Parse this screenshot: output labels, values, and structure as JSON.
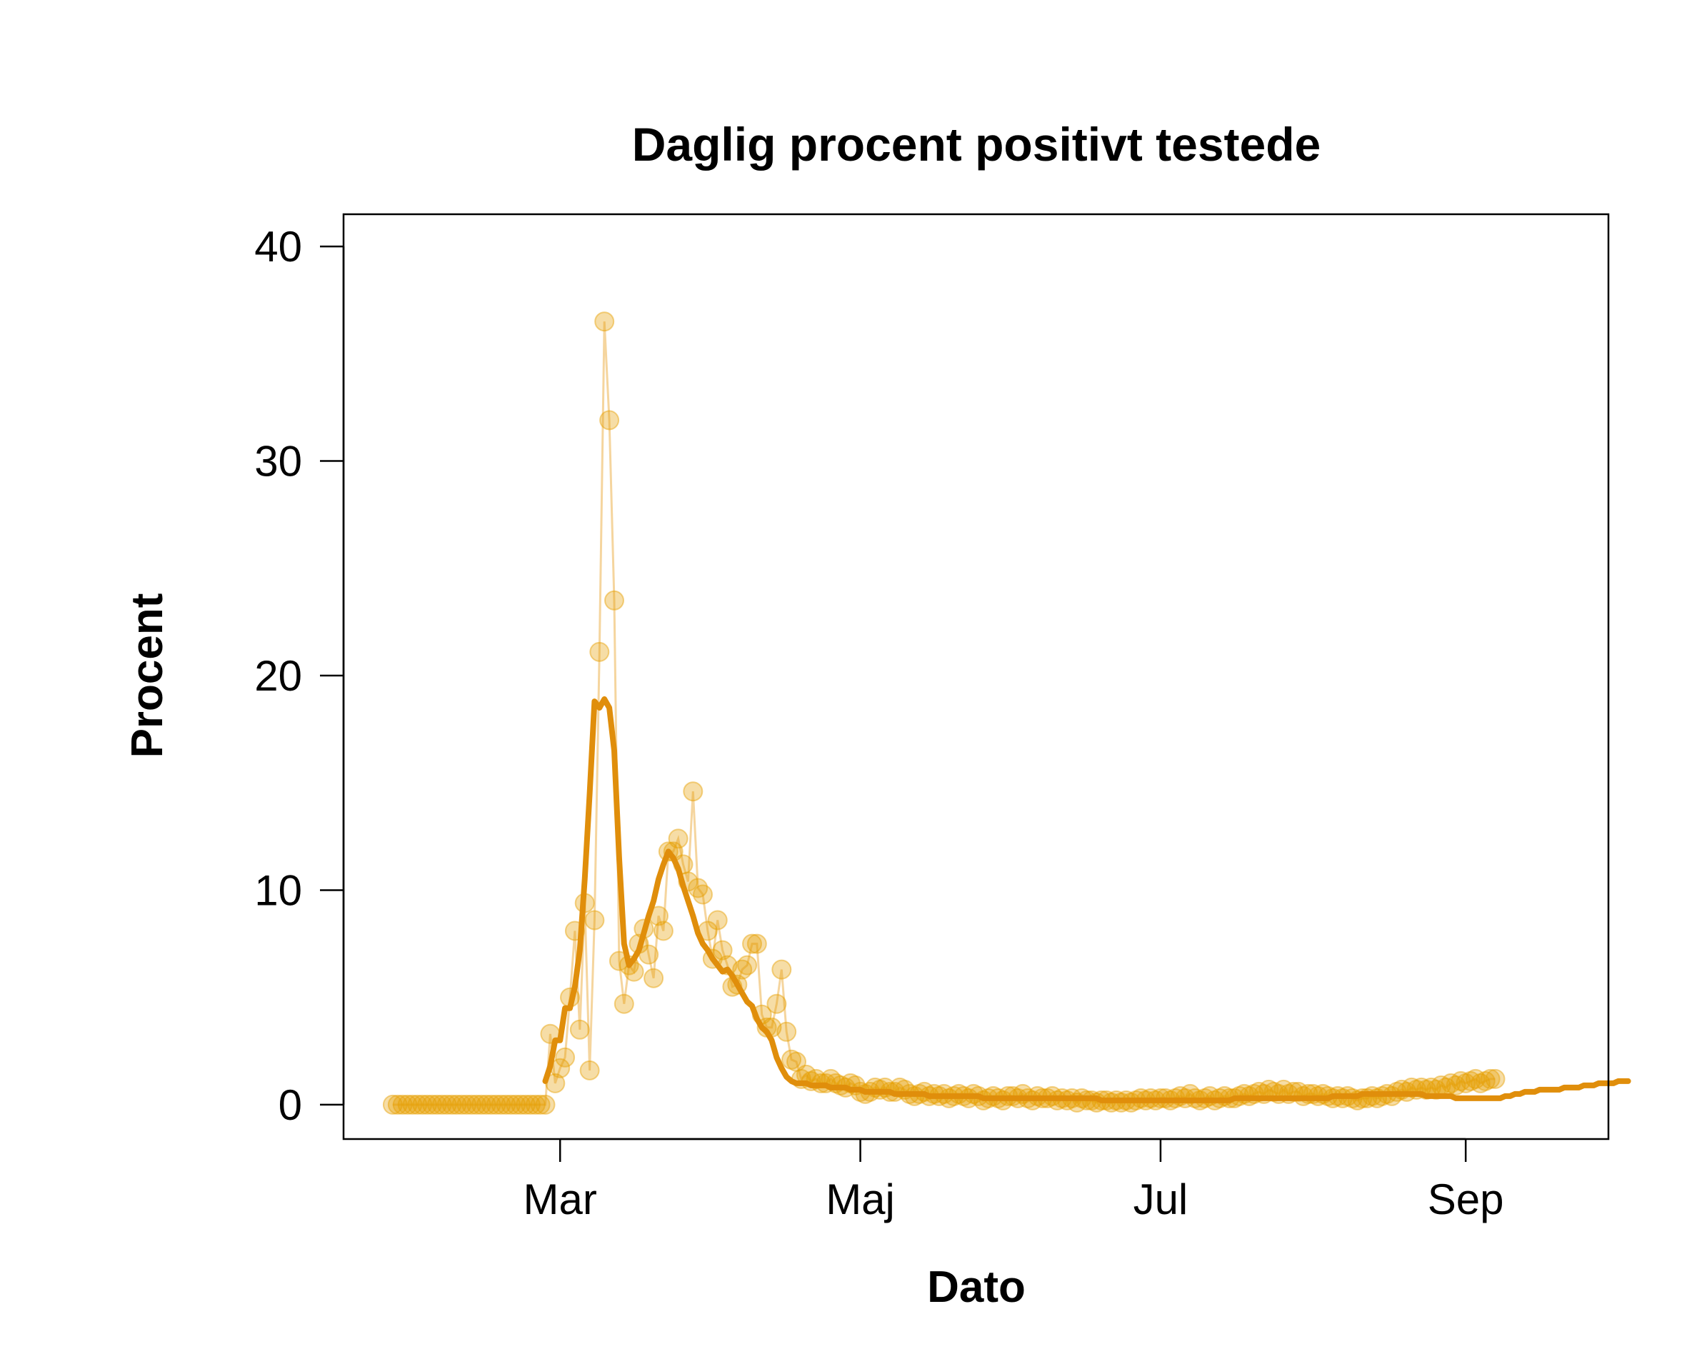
{
  "chart_data": {
    "type": "line",
    "title": "Daglig procent positivt testede",
    "xlabel": "Dato",
    "ylabel": "Procent",
    "x_ticks": [
      "Mar",
      "Maj",
      "Jul",
      "Sep"
    ],
    "x_tick_dates": [
      "2020-03-01",
      "2020-05-01",
      "2020-07-01",
      "2020-09-01"
    ],
    "x_range": [
      "2020-01-17",
      "2020-09-30"
    ],
    "y_ticks": [
      0,
      10,
      20,
      30,
      40
    ],
    "ylim": [
      -1.6,
      41.5
    ],
    "grid": false,
    "legend": "none",
    "colors": {
      "points": "#E69F00",
      "smooth_line": "#E08E0B",
      "daily_line": "#F5D59E"
    },
    "daily_percent": {
      "start_date": "2020-01-27",
      "values": [
        0,
        0,
        0,
        0,
        0,
        0,
        0,
        0,
        0,
        0,
        0,
        0,
        0,
        0,
        0,
        0,
        0,
        0,
        0,
        0,
        0,
        0,
        0,
        0,
        0,
        0,
        0,
        0,
        0,
        0,
        0,
        0,
        3.3,
        1.0,
        1.7,
        2.2,
        5.0,
        8.1,
        3.5,
        9.4,
        1.6,
        8.6,
        21.1,
        36.5,
        31.9,
        23.5,
        6.7,
        4.7,
        6.5,
        6.2,
        7.5,
        8.2,
        7.0,
        5.9,
        8.8,
        8.1,
        11.8,
        11.8,
        12.4,
        11.2,
        10.4,
        14.6,
        10.1,
        9.8,
        8.1,
        6.8,
        8.6,
        7.2,
        6.5,
        5.5,
        5.6,
        6.3,
        6.5,
        7.5,
        7.5,
        4.2,
        3.6,
        3.6,
        4.7,
        6.3,
        3.4,
        2.1,
        2.0,
        1.2,
        1.4,
        1.1,
        1.2,
        1.0,
        1.0,
        1.2,
        1.0,
        0.9,
        0.8,
        1.0,
        0.9,
        0.6,
        0.5,
        0.6,
        0.8,
        0.7,
        0.8,
        0.6,
        0.6,
        0.8,
        0.7,
        0.5,
        0.4,
        0.5,
        0.6,
        0.4,
        0.5,
        0.4,
        0.5,
        0.3,
        0.4,
        0.5,
        0.4,
        0.3,
        0.5,
        0.4,
        0.2,
        0.3,
        0.4,
        0.3,
        0.2,
        0.4,
        0.4,
        0.3,
        0.5,
        0.3,
        0.2,
        0.4,
        0.3,
        0.3,
        0.4,
        0.2,
        0.3,
        0.2,
        0.3,
        0.1,
        0.3,
        0.2,
        0.2,
        0.1,
        0.2,
        0.2,
        0.1,
        0.2,
        0.1,
        0.2,
        0.1,
        0.2,
        0.3,
        0.2,
        0.3,
        0.2,
        0.3,
        0.3,
        0.2,
        0.3,
        0.4,
        0.3,
        0.5,
        0.3,
        0.2,
        0.3,
        0.4,
        0.2,
        0.3,
        0.4,
        0.3,
        0.3,
        0.4,
        0.5,
        0.4,
        0.5,
        0.6,
        0.5,
        0.7,
        0.6,
        0.5,
        0.7,
        0.5,
        0.6,
        0.6,
        0.4,
        0.5,
        0.5,
        0.4,
        0.5,
        0.4,
        0.3,
        0.4,
        0.3,
        0.4,
        0.3,
        0.2,
        0.3,
        0.3,
        0.4,
        0.3,
        0.4,
        0.5,
        0.4,
        0.6,
        0.7,
        0.6,
        0.8,
        0.7,
        0.8,
        0.7,
        0.8,
        0.7,
        0.9,
        0.8,
        1.0,
        0.9,
        1.1,
        1.0,
        1.1,
        1.2,
        1.0,
        1.1,
        1.2,
        1.2
      ]
    },
    "smoothed_percent": {
      "start_date": "2020-02-27",
      "values": [
        1.1,
        1.8,
        3.0,
        3.0,
        4.5,
        4.5,
        5.5,
        7.2,
        10.5,
        14.5,
        18.8,
        18.5,
        18.9,
        18.5,
        16.5,
        11.5,
        7.5,
        6.5,
        6.8,
        7.2,
        8.0,
        8.8,
        9.5,
        10.5,
        11.2,
        11.8,
        11.5,
        11.0,
        10.2,
        9.5,
        8.8,
        8.0,
        7.5,
        7.2,
        6.8,
        6.5,
        6.2,
        6.3,
        6.0,
        5.6,
        5.2,
        4.8,
        4.6,
        4.0,
        3.6,
        3.4,
        3.0,
        2.2,
        1.7,
        1.3,
        1.1,
        1.0,
        1.0,
        1.0,
        0.9,
        0.9,
        0.9,
        0.9,
        0.8,
        0.8,
        0.8,
        0.8,
        0.7,
        0.7,
        0.7,
        0.6,
        0.6,
        0.6,
        0.6,
        0.6,
        0.6,
        0.5,
        0.5,
        0.5,
        0.5,
        0.5,
        0.5,
        0.5,
        0.4,
        0.4,
        0.4,
        0.4,
        0.4,
        0.4,
        0.4,
        0.4,
        0.4,
        0.4,
        0.4,
        0.3,
        0.3,
        0.3,
        0.3,
        0.3,
        0.3,
        0.3,
        0.3,
        0.3,
        0.3,
        0.3,
        0.3,
        0.3,
        0.3,
        0.3,
        0.3,
        0.3,
        0.3,
        0.3,
        0.3,
        0.3,
        0.3,
        0.3,
        0.3,
        0.2,
        0.2,
        0.2,
        0.2,
        0.2,
        0.2,
        0.2,
        0.2,
        0.2,
        0.2,
        0.2,
        0.2,
        0.2,
        0.2,
        0.2,
        0.2,
        0.2,
        0.2,
        0.2,
        0.2,
        0.2,
        0.2,
        0.2,
        0.2,
        0.2,
        0.2,
        0.2,
        0.3,
        0.3,
        0.3,
        0.3,
        0.3,
        0.3,
        0.3,
        0.3,
        0.3,
        0.3,
        0.3,
        0.3,
        0.3,
        0.3,
        0.3,
        0.3,
        0.3,
        0.3,
        0.3,
        0.3,
        0.4,
        0.4,
        0.4,
        0.4,
        0.4,
        0.4,
        0.5,
        0.5,
        0.5,
        0.5,
        0.5,
        0.5,
        0.5,
        0.5,
        0.5,
        0.5,
        0.5,
        0.5,
        0.5,
        0.4,
        0.4,
        0.4,
        0.4,
        0.4,
        0.4,
        0.3,
        0.3,
        0.3,
        0.3,
        0.3,
        0.3,
        0.3,
        0.3,
        0.3,
        0.3,
        0.4,
        0.4,
        0.5,
        0.5,
        0.6,
        0.6,
        0.6,
        0.7,
        0.7,
        0.7,
        0.7,
        0.7,
        0.8,
        0.8,
        0.8,
        0.8,
        0.9,
        0.9,
        0.9,
        1.0,
        1.0,
        1.0,
        1.0,
        1.1,
        1.1,
        1.1
      ]
    }
  }
}
